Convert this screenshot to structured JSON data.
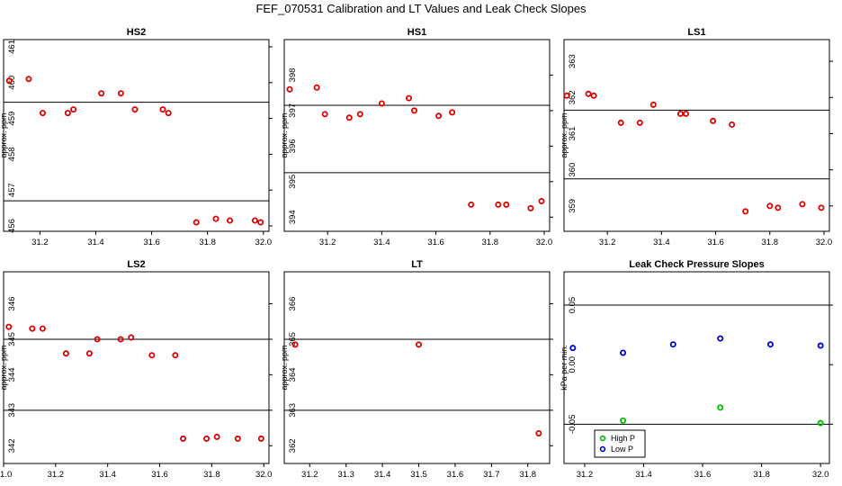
{
  "title": "FEF_070531  Calibration and LT Values and Leak Check Slopes",
  "chart_data": [
    {
      "type": "scatter",
      "title": "HS2",
      "ylabel": "approx. ppm",
      "xlim": [
        31.07,
        32.02
      ],
      "ylim": [
        455.85,
        461.2
      ],
      "xticks": [
        "31.2",
        "31.4",
        "31.6",
        "31.8",
        "32.0"
      ],
      "yticks": [
        "456",
        "457",
        "458",
        "459",
        "460",
        "461"
      ],
      "hlines": [
        459.45,
        456.7
      ],
      "series": [
        {
          "color": "#dd0000",
          "x": [
            31.09,
            31.16,
            31.21,
            31.3,
            31.32,
            31.42,
            31.49,
            31.54,
            31.64,
            31.66,
            31.76,
            31.83,
            31.88,
            31.97,
            31.99
          ],
          "y": [
            460.05,
            460.1,
            459.15,
            459.15,
            459.25,
            459.7,
            459.7,
            459.25,
            459.25,
            459.15,
            456.1,
            456.2,
            456.15,
            456.15,
            456.1
          ]
        }
      ]
    },
    {
      "type": "scatter",
      "title": "HS1",
      "ylabel": "approx. ppm",
      "xlim": [
        31.04,
        32.02
      ],
      "ylim": [
        393.6,
        399.0
      ],
      "xticks": [
        "31.2",
        "31.4",
        "31.6",
        "31.8",
        "32.0"
      ],
      "yticks": [
        "394",
        "395",
        "396",
        "397",
        "398"
      ],
      "hlines": [
        397.15,
        395.25
      ],
      "series": [
        {
          "color": "#dd0000",
          "x": [
            31.06,
            31.16,
            31.19,
            31.28,
            31.32,
            31.4,
            31.5,
            31.52,
            31.61,
            31.66,
            31.73,
            31.83,
            31.86,
            31.95,
            31.99
          ],
          "y": [
            397.6,
            397.65,
            396.9,
            396.8,
            396.9,
            397.2,
            397.35,
            397.0,
            396.85,
            396.95,
            394.35,
            394.35,
            394.35,
            394.25,
            394.45
          ]
        }
      ]
    },
    {
      "type": "scatter",
      "title": "LS1",
      "ylabel": "approx. ppm",
      "xlim": [
        31.04,
        32.02
      ],
      "ylim": [
        358.3,
        363.6
      ],
      "xticks": [
        "31.2",
        "31.4",
        "31.6",
        "31.8",
        "32.0"
      ],
      "yticks": [
        "359",
        "360",
        "361",
        "362",
        "363"
      ],
      "hlines": [
        361.65,
        359.75
      ],
      "series": [
        {
          "color": "#dd0000",
          "x": [
            31.05,
            31.13,
            31.15,
            31.25,
            31.32,
            31.37,
            31.47,
            31.49,
            31.59,
            31.66,
            31.71,
            31.8,
            31.83,
            31.92,
            31.99
          ],
          "y": [
            362.05,
            362.1,
            362.05,
            361.3,
            361.3,
            361.8,
            361.55,
            361.55,
            361.35,
            361.25,
            358.85,
            359.0,
            358.95,
            359.05,
            358.95
          ]
        }
      ]
    },
    {
      "type": "scatter",
      "title": "LS2",
      "ylabel": "approx. ppm",
      "xlim": [
        31.0,
        32.02
      ],
      "ylim": [
        341.5,
        346.9
      ],
      "xticks": [
        "31.0",
        "31.2",
        "31.4",
        "31.6",
        "31.8",
        "32.0"
      ],
      "yticks": [
        "342",
        "343",
        "344",
        "345",
        "346"
      ],
      "hlines": [
        345.0,
        343.0
      ],
      "series": [
        {
          "color": "#dd0000",
          "x": [
            31.02,
            31.11,
            31.15,
            31.24,
            31.33,
            31.36,
            31.45,
            31.49,
            31.57,
            31.66,
            31.69,
            31.78,
            31.82,
            31.9,
            31.99
          ],
          "y": [
            345.35,
            345.3,
            345.3,
            344.6,
            344.6,
            345.0,
            345.0,
            345.05,
            344.55,
            344.55,
            342.2,
            342.2,
            342.25,
            342.2,
            342.2
          ]
        }
      ]
    },
    {
      "type": "scatter",
      "title": "LT",
      "ylabel": "approx. ppm",
      "xlim": [
        31.13,
        31.86
      ],
      "ylim": [
        361.5,
        366.9
      ],
      "xticks": [
        "31.2",
        "31.3",
        "31.4",
        "31.5",
        "31.6",
        "31.7",
        "31.8"
      ],
      "yticks": [
        "362",
        "363",
        "364",
        "365",
        "366"
      ],
      "hlines": [
        365.0,
        363.0
      ],
      "series": [
        {
          "color": "#dd0000",
          "x": [
            31.16,
            31.5,
            31.83
          ],
          "y": [
            364.85,
            364.85,
            362.35
          ]
        }
      ]
    },
    {
      "type": "scatter",
      "title": "Leak Check Pressure Slopes",
      "ylabel": "kPa per min.",
      "xlim": [
        31.13,
        32.03
      ],
      "ylim": [
        -0.083,
        0.078
      ],
      "xticks": [
        "31.2",
        "31.4",
        "31.6",
        "31.8",
        "32.0"
      ],
      "yticks": [
        "-0.05",
        "0.00",
        "0.05"
      ],
      "hlines": [
        0.05,
        -0.05
      ],
      "legend": "bottom-left",
      "series": [
        {
          "name": "High P",
          "color": "#00bb00",
          "x": [
            31.33,
            31.66,
            32.0
          ],
          "y": [
            -0.047,
            -0.036,
            -0.049
          ]
        },
        {
          "name": "Low P",
          "color": "#0000cc",
          "x": [
            31.16,
            31.33,
            31.5,
            31.66,
            31.83,
            32.0
          ],
          "y": [
            0.014,
            0.01,
            0.017,
            0.022,
            0.017,
            0.016
          ]
        }
      ]
    }
  ]
}
